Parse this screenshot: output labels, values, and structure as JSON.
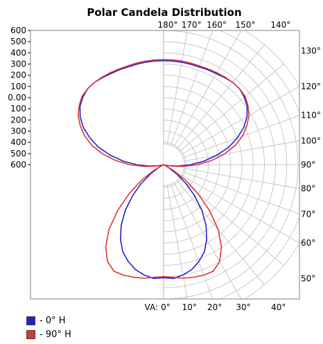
{
  "chart_data": {
    "type": "polar",
    "title": "Polar Candela Distribution",
    "radial_range": [
      0,
      600
    ],
    "left_axis_labels": [
      "600",
      "500",
      "400",
      "300",
      "200",
      "100",
      "0.00",
      "100",
      "200",
      "300",
      "400",
      "500",
      "600"
    ],
    "bottom_prefix": "VA:",
    "bottom_labels": [
      "0°",
      "10°",
      "20°",
      "30°",
      "40°"
    ],
    "top_labels": [
      "180°",
      "170°",
      "160°",
      "150°",
      "140°"
    ],
    "right_labels": [
      "130°",
      "120°",
      "110°",
      "100°",
      "90°",
      "80°",
      "70°",
      "60°",
      "50°"
    ],
    "series": [
      {
        "name": "- 0° H",
        "color": "#2222cc",
        "angles": [
          0,
          5,
          10,
          15,
          20,
          25,
          30,
          35,
          40,
          45,
          50,
          55,
          60,
          65,
          70,
          75,
          80,
          85,
          90,
          95,
          100,
          105,
          110,
          115,
          120,
          125,
          130,
          135,
          140,
          145,
          150,
          155,
          160,
          165,
          170,
          175,
          180
        ],
        "values": [
          505,
          510,
          500,
          485,
          460,
          430,
          385,
          330,
          265,
          195,
          130,
          70,
          25,
          8,
          0,
          8,
          25,
          65,
          120,
          180,
          240,
          300,
          350,
          395,
          430,
          455,
          470,
          480,
          480,
          475,
          470,
          468,
          465,
          465,
          465,
          465,
          465
        ]
      },
      {
        "name": "- 90° H",
        "color": "#dd3333",
        "angles": [
          0,
          5,
          10,
          15,
          20,
          25,
          30,
          35,
          40,
          45,
          50,
          55,
          60,
          65,
          70,
          75,
          80,
          85,
          90,
          95,
          100,
          105,
          110,
          115,
          120,
          125,
          130,
          135,
          140,
          145,
          150,
          155,
          160,
          165,
          170,
          175,
          180
        ],
        "values": [
          500,
          505,
          515,
          520,
          525,
          525,
          500,
          450,
          380,
          290,
          200,
          120,
          50,
          10,
          0,
          10,
          35,
          85,
          150,
          215,
          275,
          330,
          375,
          410,
          440,
          460,
          475,
          480,
          480,
          478,
          475,
          472,
          470,
          470,
          470,
          470,
          470
        ]
      }
    ]
  }
}
